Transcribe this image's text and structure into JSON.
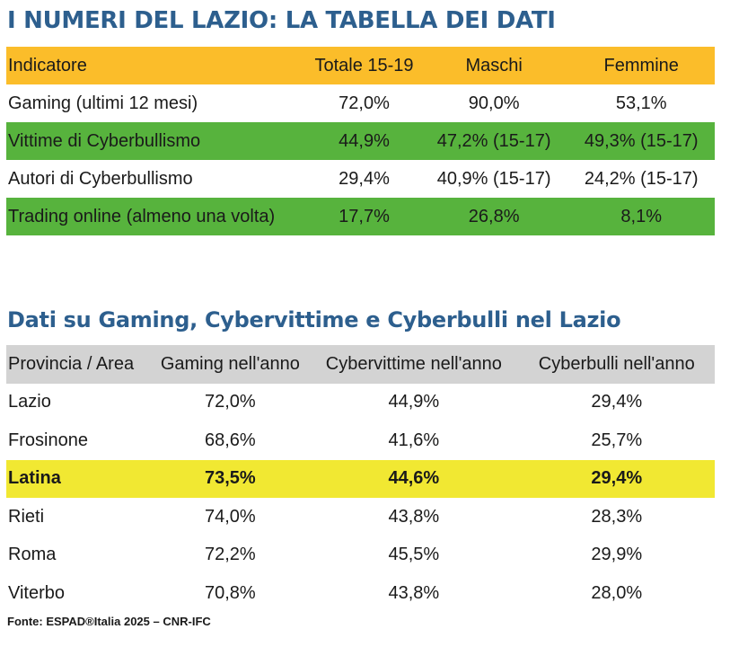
{
  "title1": "I NUMERI DEL LAZIO: LA TABELLA DEI DATI",
  "table1": {
    "headers": [
      "Indicatore",
      "Totale  15-19",
      "Maschi",
      "Femmine"
    ],
    "rows": [
      {
        "cells": [
          "Gaming (ultimi 12 mesi)",
          "72,0%",
          "90,0%",
          "53,1%"
        ],
        "highlight": "none"
      },
      {
        "cells": [
          "Vittime di Cyberbullismo",
          "44,9%",
          "47,2% (15-17)",
          "49,3% (15-17)"
        ],
        "highlight": "green"
      },
      {
        "cells": [
          "Autori di Cyberbullismo",
          "29,4%",
          "40,9% (15-17)",
          "24,2% (15-17)"
        ],
        "highlight": "none"
      },
      {
        "cells": [
          "Trading online (almeno una volta)",
          "17,7%",
          "26,8%",
          "8,1%"
        ],
        "highlight": "green"
      }
    ]
  },
  "title2": "Dati su Gaming, Cybervittime  e Cyberbulli  nel Lazio",
  "table2": {
    "headers": [
      "Provincia / Area",
      "Gaming nell'anno",
      "Cybervittime  nell'anno",
      "Cyberbulli nell'anno"
    ],
    "rows": [
      {
        "cells": [
          "Lazio",
          "72,0%",
          "44,9%",
          "29,4%"
        ],
        "highlight": "none"
      },
      {
        "cells": [
          "Frosinone",
          "68,6%",
          "41,6%",
          "25,7%"
        ],
        "highlight": "none"
      },
      {
        "cells": [
          "Latina",
          "73,5%",
          "44,6%",
          "29,4%"
        ],
        "highlight": "yellow"
      },
      {
        "cells": [
          "Rieti",
          "74,0%",
          "43,8%",
          "28,3%"
        ],
        "highlight": "none"
      },
      {
        "cells": [
          "Roma",
          "72,2%",
          "45,5%",
          "29,9%"
        ],
        "highlight": "none"
      },
      {
        "cells": [
          "Viterbo",
          "70,8%",
          "43,8%",
          "28,0%"
        ],
        "highlight": "none"
      }
    ]
  },
  "source": "Fonte: ESPAD®Italia 2025 – CNR-IFC",
  "colors": {
    "title": "#2d5f8e",
    "header1": "#fbbd2a",
    "green_row": "#57b33d",
    "header2": "#d3d3d3",
    "yellow_row": "#f1e832"
  }
}
